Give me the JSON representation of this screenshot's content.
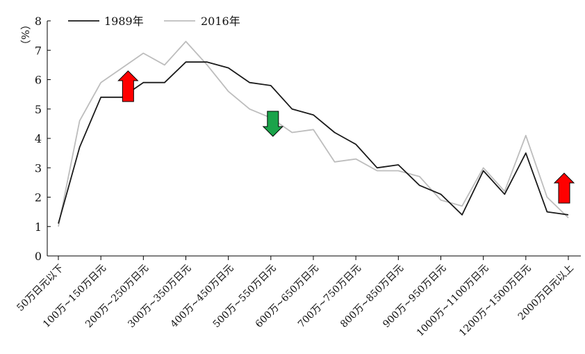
{
  "chart_data": {
    "type": "line",
    "ylabel": "（%）",
    "ylim": [
      0,
      8
    ],
    "yticks": [
      0,
      1,
      2,
      3,
      4,
      5,
      6,
      7,
      8
    ],
    "legend_position": "top-left",
    "grid": false,
    "x_labels": [
      "50万日元以下",
      "100万~150万日元",
      "200万~250万日元",
      "300万~350万日元",
      "400万~450万日元",
      "500万~550万日元",
      "600万~650万日元",
      "700万~750万日元",
      "800万~850万日元",
      "900万~950万日元",
      "1000万~1100万日元",
      "1200万~1500万日元",
      "2000万日元以上"
    ],
    "series": [
      {
        "name": "1989年",
        "color": "#1a1a1a",
        "values": [
          1.1,
          3.7,
          5.4,
          5.4,
          5.9,
          5.9,
          6.6,
          6.6,
          6.4,
          5.9,
          5.8,
          5.0,
          4.8,
          4.2,
          3.8,
          3.0,
          3.1,
          2.4,
          2.1,
          1.4,
          2.9,
          2.1,
          3.5,
          1.5,
          1.4
        ]
      },
      {
        "name": "2016年",
        "color": "#bdbdbd",
        "values": [
          1.0,
          4.6,
          5.9,
          6.4,
          6.9,
          6.5,
          7.3,
          6.5,
          5.6,
          5.0,
          4.7,
          4.2,
          4.3,
          3.2,
          3.3,
          2.9,
          2.9,
          2.7,
          1.9,
          1.7,
          3.0,
          2.2,
          4.1,
          2.0,
          1.3
        ]
      }
    ],
    "annotations": [
      {
        "type": "arrow-up",
        "color": "#ff0000",
        "near_index": 4
      },
      {
        "type": "arrow-down",
        "color": "#1aa34a",
        "near_index": 10
      },
      {
        "type": "arrow-up",
        "color": "#ff0000",
        "near_index": 24
      }
    ]
  }
}
